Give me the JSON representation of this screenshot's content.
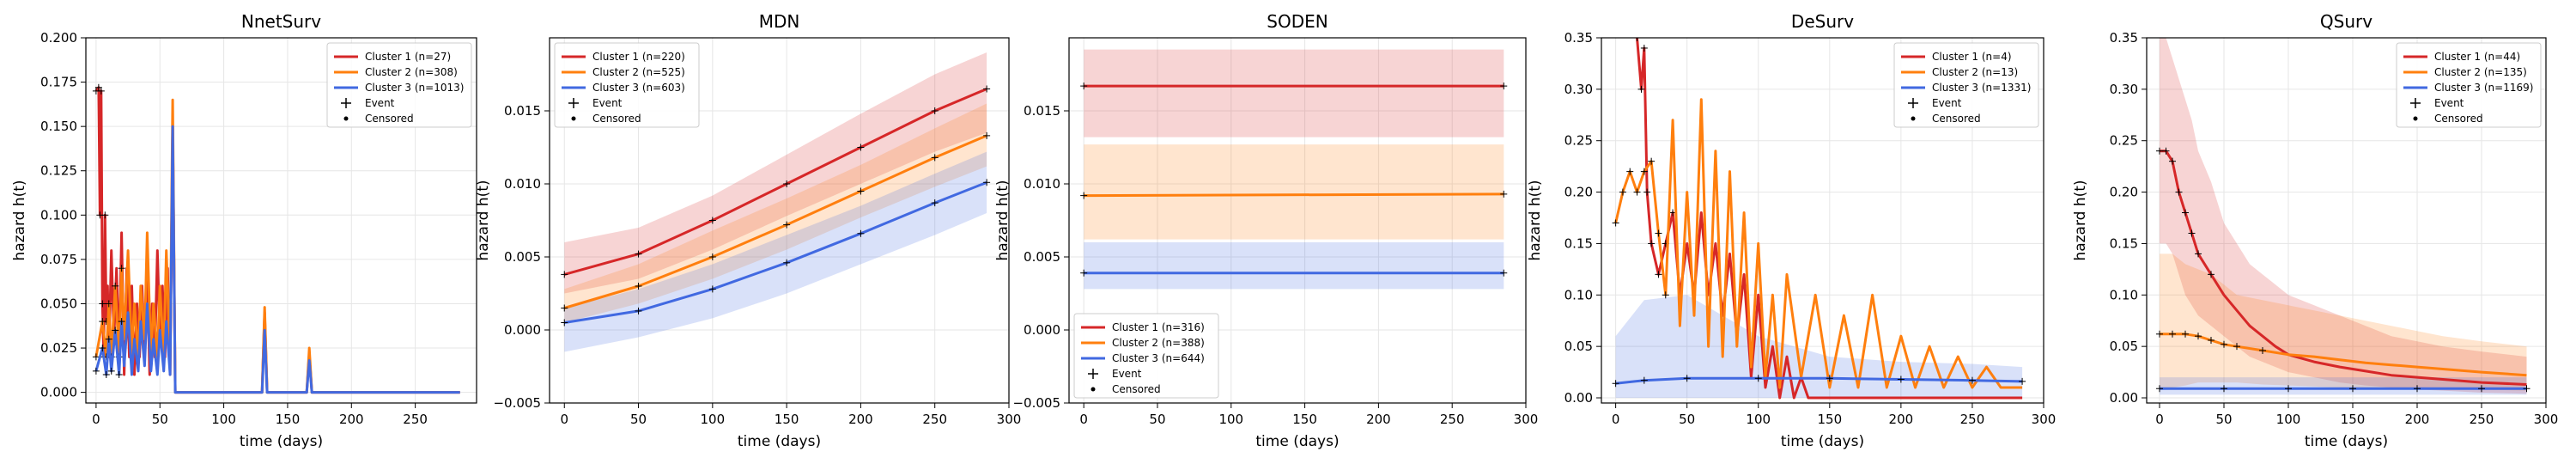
{
  "colors": {
    "cluster1": "#d62728",
    "cluster2": "#ff7f0e",
    "cluster3": "#4169e1",
    "marker": "#000000",
    "grid": "#e6e6e6"
  },
  "chart_data": [
    {
      "type": "line",
      "title": "NnetSurv",
      "xlabel": "time (days)",
      "ylabel": "hazard h(t)",
      "xlim": [
        -8,
        298
      ],
      "ylim": [
        -0.006,
        0.2
      ],
      "xticks": [
        0,
        50,
        100,
        150,
        200,
        250
      ],
      "yticks": [
        0.0,
        0.025,
        0.05,
        0.075,
        0.1,
        0.125,
        0.15,
        0.175,
        0.2
      ],
      "ytick_labels": [
        "0.000",
        "0.025",
        "0.050",
        "0.075",
        "0.100",
        "0.125",
        "0.150",
        "0.175",
        "0.200"
      ],
      "grid": true,
      "legend_position": "top-right",
      "legend": [
        "Cluster 1 (n=27)",
        "Cluster 2 (n=308)",
        "Cluster 3 (n=1013)",
        "Event",
        "Censored"
      ],
      "series": [
        {
          "name": "Cluster 1 (n=27)",
          "x": [
            0,
            2,
            3,
            4,
            5,
            6,
            7,
            8,
            9,
            10,
            12,
            14,
            16,
            18,
            20,
            22,
            24,
            26,
            28,
            30,
            32,
            34,
            36,
            38,
            40,
            42,
            44,
            46,
            48,
            50,
            52,
            54,
            56,
            58,
            60,
            62,
            130,
            132,
            134,
            165,
            167,
            169,
            285
          ],
          "y": [
            0.17,
            0.172,
            0.1,
            0.17,
            0.05,
            0.02,
            0.1,
            0.04,
            0.06,
            0.02,
            0.08,
            0.03,
            0.07,
            0.02,
            0.09,
            0.01,
            0.07,
            0.02,
            0.06,
            0.01,
            0.05,
            0.02,
            0.06,
            0.02,
            0.07,
            0.01,
            0.05,
            0.02,
            0.08,
            0.03,
            0.06,
            0.02,
            0.07,
            0.01,
            0.15,
            0.0,
            0.0,
            0.045,
            0.0,
            0.0,
            0.022,
            0.0,
            0.0
          ]
        },
        {
          "name": "Cluster 2 (n=308)",
          "x": [
            0,
            5,
            8,
            10,
            12,
            15,
            18,
            20,
            22,
            25,
            28,
            30,
            33,
            35,
            38,
            40,
            43,
            45,
            48,
            50,
            53,
            55,
            58,
            60,
            62,
            130,
            132,
            134,
            165,
            167,
            169,
            285
          ],
          "y": [
            0.02,
            0.04,
            0.02,
            0.05,
            0.02,
            0.06,
            0.02,
            0.07,
            0.03,
            0.08,
            0.02,
            0.05,
            0.02,
            0.06,
            0.03,
            0.09,
            0.02,
            0.05,
            0.02,
            0.06,
            0.02,
            0.08,
            0.02,
            0.165,
            0.0,
            0.0,
            0.048,
            0.0,
            0.0,
            0.025,
            0.0,
            0.0
          ]
        },
        {
          "name": "Cluster 3 (n=1013)",
          "x": [
            0,
            5,
            8,
            10,
            12,
            15,
            18,
            20,
            22,
            25,
            28,
            30,
            33,
            35,
            38,
            40,
            43,
            45,
            48,
            50,
            53,
            55,
            58,
            60,
            62,
            130,
            132,
            134,
            165,
            167,
            169,
            285
          ],
          "y": [
            0.012,
            0.025,
            0.01,
            0.03,
            0.012,
            0.035,
            0.01,
            0.04,
            0.015,
            0.045,
            0.01,
            0.03,
            0.012,
            0.04,
            0.015,
            0.05,
            0.012,
            0.03,
            0.01,
            0.035,
            0.012,
            0.04,
            0.01,
            0.15,
            0.0,
            0.0,
            0.035,
            0.0,
            0.0,
            0.018,
            0.0,
            0.0
          ]
        }
      ]
    },
    {
      "type": "line",
      "title": "MDN",
      "xlabel": "time (days)",
      "ylabel": "hazard h(t)",
      "xlim": [
        -10,
        300
      ],
      "ylim": [
        -0.005,
        0.02
      ],
      "xticks": [
        0,
        50,
        100,
        150,
        200,
        250,
        300
      ],
      "yticks": [
        -0.005,
        0.0,
        0.005,
        0.01,
        0.015
      ],
      "ytick_labels": [
        "−0.005",
        "0.000",
        "0.005",
        "0.010",
        "0.015"
      ],
      "grid": true,
      "legend_position": "top-left",
      "legend": [
        "Cluster 1 (n=220)",
        "Cluster 2 (n=525)",
        "Cluster 3 (n=603)",
        "Event",
        "Censored"
      ],
      "series": [
        {
          "name": "Cluster 1 (n=220)",
          "x": [
            0,
            50,
            100,
            150,
            200,
            250,
            285
          ],
          "y": [
            0.0038,
            0.0052,
            0.0075,
            0.01,
            0.0125,
            0.015,
            0.0165
          ],
          "lower": [
            0.0025,
            0.0035,
            0.0055,
            0.0078,
            0.01,
            0.0122,
            0.0135
          ],
          "upper": [
            0.006,
            0.007,
            0.0092,
            0.012,
            0.0148,
            0.0175,
            0.019
          ]
        },
        {
          "name": "Cluster 2 (n=525)",
          "x": [
            0,
            50,
            100,
            150,
            200,
            250,
            285
          ],
          "y": [
            0.0015,
            0.003,
            0.005,
            0.0072,
            0.0095,
            0.0118,
            0.0133
          ],
          "lower": [
            0.0005,
            0.0018,
            0.0035,
            0.0055,
            0.0077,
            0.0098,
            0.0112
          ],
          "upper": [
            0.0028,
            0.0045,
            0.0068,
            0.009,
            0.0113,
            0.0138,
            0.0155
          ]
        },
        {
          "name": "Cluster 3 (n=603)",
          "x": [
            0,
            50,
            100,
            150,
            200,
            250,
            285
          ],
          "y": [
            0.0005,
            0.0013,
            0.0028,
            0.0046,
            0.0066,
            0.0087,
            0.0101
          ],
          "lower": [
            -0.0015,
            -0.0005,
            0.0008,
            0.0025,
            0.0045,
            0.0065,
            0.008
          ],
          "upper": [
            0.0015,
            0.0028,
            0.0045,
            0.0065,
            0.0085,
            0.0107,
            0.0122
          ]
        }
      ]
    },
    {
      "type": "line",
      "title": "SODEN",
      "xlabel": "time (days)",
      "ylabel": "hazard h(t)",
      "xlim": [
        -10,
        300
      ],
      "ylim": [
        -0.005,
        0.02
      ],
      "xticks": [
        0,
        50,
        100,
        150,
        200,
        250,
        300
      ],
      "yticks": [
        -0.005,
        0.0,
        0.005,
        0.01,
        0.015
      ],
      "ytick_labels": [
        "−0.005",
        "0.000",
        "0.005",
        "0.010",
        "0.015"
      ],
      "grid": true,
      "legend_position": "bottom-left",
      "legend": [
        "Cluster 1 (n=316)",
        "Cluster 2 (n=388)",
        "Cluster 3 (n=644)",
        "Event",
        "Censored"
      ],
      "series": [
        {
          "name": "Cluster 1 (n=316)",
          "x": [
            0,
            285
          ],
          "y": [
            0.0167,
            0.0167
          ],
          "lower": [
            0.0132,
            0.0132
          ],
          "upper": [
            0.0192,
            0.0192
          ]
        },
        {
          "name": "Cluster 2 (n=388)",
          "x": [
            0,
            285
          ],
          "y": [
            0.0092,
            0.0093
          ],
          "lower": [
            0.0062,
            0.0062
          ],
          "upper": [
            0.0127,
            0.0127
          ]
        },
        {
          "name": "Cluster 3 (n=644)",
          "x": [
            0,
            285
          ],
          "y": [
            0.0039,
            0.0039
          ],
          "lower": [
            0.0028,
            0.0028
          ],
          "upper": [
            0.006,
            0.006
          ]
        }
      ]
    },
    {
      "type": "line",
      "title": "DeSurv",
      "xlabel": "time (days)",
      "ylabel": "hazard h(t)",
      "xlim": [
        -10,
        300
      ],
      "ylim": [
        -0.005,
        0.35
      ],
      "xticks": [
        0,
        50,
        100,
        150,
        200,
        250,
        300
      ],
      "yticks": [
        0.0,
        0.05,
        0.1,
        0.15,
        0.2,
        0.25,
        0.3,
        0.35
      ],
      "ytick_labels": [
        "0.00",
        "0.05",
        "0.10",
        "0.15",
        "0.20",
        "0.25",
        "0.30",
        "0.35"
      ],
      "grid": true,
      "legend_position": "top-right",
      "legend": [
        "Cluster 1 (n=4)",
        "Cluster 2 (n=13)",
        "Cluster 3 (n=1331)",
        "Event",
        "Censored"
      ],
      "series": [
        {
          "name": "Cluster 1 (n=4)",
          "x": [
            15,
            18,
            20,
            22,
            25,
            30,
            35,
            40,
            45,
            50,
            55,
            60,
            65,
            70,
            75,
            80,
            85,
            90,
            95,
            100,
            105,
            110,
            115,
            120,
            125,
            130,
            135,
            140,
            150,
            160,
            170,
            180,
            200,
            220,
            240,
            260,
            285
          ],
          "y": [
            0.35,
            0.3,
            0.34,
            0.2,
            0.15,
            0.12,
            0.15,
            0.18,
            0.1,
            0.15,
            0.1,
            0.18,
            0.1,
            0.15,
            0.08,
            0.14,
            0.06,
            0.12,
            0.02,
            0.1,
            0.01,
            0.05,
            0.0,
            0.04,
            0.0,
            0.02,
            0.0,
            0.0,
            0.0,
            0.0,
            0.0,
            0.0,
            0.0,
            0.0,
            0.0,
            0.0,
            0.0
          ]
        },
        {
          "name": "Cluster 2 (n=13)",
          "x": [
            0,
            5,
            10,
            15,
            20,
            25,
            30,
            35,
            40,
            45,
            50,
            55,
            60,
            65,
            70,
            75,
            80,
            85,
            90,
            95,
            100,
            105,
            110,
            115,
            120,
            130,
            140,
            150,
            160,
            170,
            180,
            190,
            200,
            210,
            220,
            230,
            240,
            250,
            260,
            270,
            285
          ],
          "y": [
            0.17,
            0.2,
            0.22,
            0.2,
            0.22,
            0.23,
            0.16,
            0.1,
            0.27,
            0.07,
            0.2,
            0.08,
            0.29,
            0.05,
            0.24,
            0.04,
            0.22,
            0.05,
            0.18,
            0.03,
            0.15,
            0.02,
            0.1,
            0.01,
            0.12,
            0.02,
            0.1,
            0.01,
            0.08,
            0.01,
            0.1,
            0.01,
            0.06,
            0.01,
            0.05,
            0.01,
            0.04,
            0.01,
            0.03,
            0.01,
            0.01
          ]
        },
        {
          "name": "Cluster 3 (n=1331)",
          "x": [
            0,
            20,
            50,
            100,
            150,
            200,
            250,
            285
          ],
          "y": [
            0.014,
            0.017,
            0.019,
            0.019,
            0.019,
            0.018,
            0.017,
            0.016
          ],
          "lower": [
            0.0,
            0.0,
            0.0,
            0.0,
            0.0,
            0.0,
            0.0,
            0.0
          ],
          "upper": [
            0.06,
            0.095,
            0.1,
            0.06,
            0.04,
            0.035,
            0.033,
            0.03
          ]
        }
      ]
    },
    {
      "type": "line",
      "title": "QSurv",
      "xlabel": "time (days)",
      "ylabel": "hazard h(t)",
      "xlim": [
        -10,
        300
      ],
      "ylim": [
        -0.005,
        0.35
      ],
      "xticks": [
        0,
        50,
        100,
        150,
        200,
        250,
        300
      ],
      "yticks": [
        0.0,
        0.05,
        0.1,
        0.15,
        0.2,
        0.25,
        0.3,
        0.35
      ],
      "ytick_labels": [
        "0.00",
        "0.05",
        "0.10",
        "0.15",
        "0.20",
        "0.25",
        "0.30",
        "0.35"
      ],
      "grid": true,
      "legend_position": "top-right",
      "legend": [
        "Cluster 1 (n=44)",
        "Cluster 2 (n=135)",
        "Cluster 3 (n=1169)",
        "Event",
        "Censored"
      ],
      "series": [
        {
          "name": "Cluster 1 (n=44)",
          "x": [
            0,
            5,
            10,
            15,
            20,
            25,
            30,
            40,
            50,
            60,
            70,
            80,
            90,
            100,
            120,
            140,
            160,
            180,
            200,
            220,
            250,
            285
          ],
          "y": [
            0.24,
            0.24,
            0.23,
            0.2,
            0.18,
            0.16,
            0.14,
            0.12,
            0.1,
            0.085,
            0.07,
            0.06,
            0.05,
            0.042,
            0.035,
            0.03,
            0.026,
            0.022,
            0.02,
            0.018,
            0.015,
            0.013
          ],
          "lower": [
            0.15,
            0.15,
            0.14,
            0.12,
            0.1,
            0.09,
            0.08,
            0.07,
            0.06,
            0.05,
            0.04,
            0.035,
            0.03,
            0.025,
            0.02,
            0.015,
            0.012,
            0.01,
            0.008,
            0.007,
            0.005,
            0.004
          ],
          "upper": [
            0.35,
            0.35,
            0.33,
            0.31,
            0.29,
            0.27,
            0.24,
            0.21,
            0.17,
            0.15,
            0.13,
            0.12,
            0.11,
            0.1,
            0.09,
            0.08,
            0.07,
            0.06,
            0.055,
            0.05,
            0.045,
            0.04
          ]
        },
        {
          "name": "Cluster 2 (n=135)",
          "x": [
            0,
            10,
            20,
            30,
            40,
            50,
            60,
            80,
            100,
            120,
            140,
            160,
            180,
            200,
            220,
            250,
            285
          ],
          "y": [
            0.062,
            0.062,
            0.062,
            0.06,
            0.056,
            0.052,
            0.05,
            0.046,
            0.042,
            0.04,
            0.037,
            0.034,
            0.032,
            0.03,
            0.028,
            0.025,
            0.022
          ],
          "lower": [
            0.01,
            0.01,
            0.012,
            0.015,
            0.015,
            0.015,
            0.015,
            0.013,
            0.012,
            0.011,
            0.01,
            0.01,
            0.009,
            0.009,
            0.008,
            0.008,
            0.007
          ],
          "upper": [
            0.14,
            0.14,
            0.13,
            0.125,
            0.12,
            0.11,
            0.1,
            0.095,
            0.09,
            0.085,
            0.08,
            0.075,
            0.07,
            0.065,
            0.06,
            0.055,
            0.05
          ]
        },
        {
          "name": "Cluster 3 (n=1169)",
          "x": [
            0,
            50,
            100,
            150,
            200,
            250,
            285
          ],
          "y": [
            0.009,
            0.009,
            0.009,
            0.009,
            0.009,
            0.009,
            0.009
          ],
          "lower": [
            0.003,
            0.003,
            0.003,
            0.003,
            0.003,
            0.003,
            0.003
          ],
          "upper": [
            0.02,
            0.02,
            0.02,
            0.02,
            0.02,
            0.02,
            0.02
          ]
        }
      ]
    }
  ]
}
